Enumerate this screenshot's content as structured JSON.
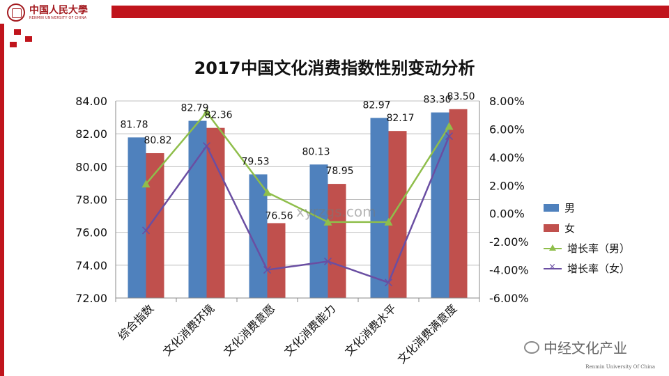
{
  "header": {
    "logo_name": "中国人民大學",
    "logo_sub": "RENMIN UNIVERSITY OF CHINA"
  },
  "footer": {
    "brand": "中经文化产业",
    "university": "Renmin University Of China",
    "watermark": "xyrzgs.com"
  },
  "colors": {
    "male_bar": "#4f81bd",
    "female_bar": "#c0504d",
    "male_growth": "#8fbe4b",
    "female_growth": "#6a4ea2",
    "brand_red": "#c0141c"
  },
  "chart_data": {
    "type": "bar",
    "title": "2017中国文化消费指数性别变动分析",
    "categories": [
      "综合指数",
      "文化消费环境",
      "文化消费意愿",
      "文化消费能力",
      "文化消费水平",
      "文化消费满意度"
    ],
    "series": [
      {
        "name": "男",
        "type": "bar",
        "axis": "left",
        "values": [
          81.78,
          82.79,
          79.53,
          80.13,
          82.97,
          83.3
        ],
        "labels": [
          "81.78",
          "82.79",
          "79.53",
          "80.13",
          "82.97",
          "83.30"
        ]
      },
      {
        "name": "女",
        "type": "bar",
        "axis": "left",
        "values": [
          80.82,
          82.36,
          76.56,
          78.95,
          82.17,
          83.5
        ],
        "labels": [
          "80.82",
          "82.36",
          "76.56",
          "78.95",
          "82.17",
          "83.50"
        ]
      },
      {
        "name": "增长率（男）",
        "type": "line",
        "axis": "right",
        "marker": "triangle",
        "values": [
          2.1,
          7.2,
          1.5,
          -0.6,
          -0.6,
          6.2
        ]
      },
      {
        "name": "增长率（女）",
        "type": "line",
        "axis": "right",
        "marker": "x",
        "values": [
          -1.2,
          4.8,
          -4.0,
          -3.4,
          -4.9,
          5.5
        ]
      }
    ],
    "y_left": {
      "min": 72,
      "max": 84,
      "step": 2,
      "ticks": [
        "72.00",
        "74.00",
        "76.00",
        "78.00",
        "80.00",
        "82.00",
        "84.00"
      ]
    },
    "y_right": {
      "min": -6,
      "max": 8,
      "step": 2,
      "ticks": [
        "-6.00%",
        "-4.00%",
        "-2.00%",
        "0.00%",
        "2.00%",
        "4.00%",
        "6.00%",
        "8.00%"
      ]
    },
    "grid": true,
    "legend_position": "right"
  }
}
